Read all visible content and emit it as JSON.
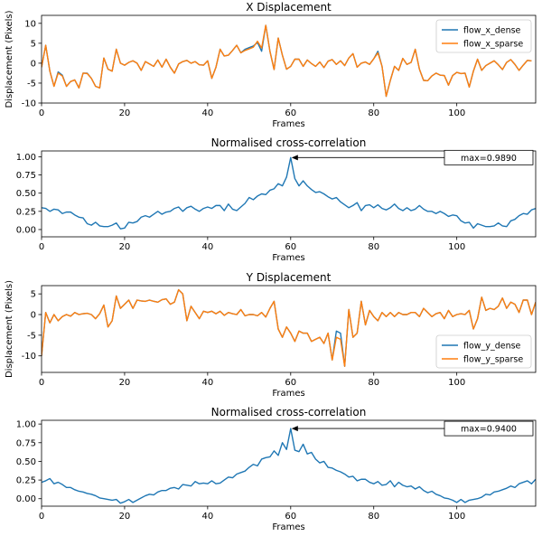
{
  "chart_data": [
    {
      "type": "line",
      "title": "X Displacement",
      "xlabel": "Frames",
      "ylabel": "Displacement (Pixels)",
      "xlim": [
        0,
        119
      ],
      "ylim": [
        -10,
        12
      ],
      "xticks": [
        0,
        20,
        40,
        60,
        80,
        100
      ],
      "yticks": [
        -10,
        -5,
        0,
        5,
        10
      ],
      "legend": "upper right",
      "series": [
        {
          "name": "flow_x_dense",
          "color": "#1f77b4",
          "values": [
            -1,
            4.5,
            -2,
            -5.8,
            -2.2,
            -3,
            -5.8,
            -4.6,
            -4.2,
            -6.2,
            -2.5,
            -2.5,
            -3.8,
            -5.8,
            -6.2,
            1.3,
            -1.5,
            -2.0,
            3.5,
            0.0,
            -0.5,
            0.2,
            0.6,
            0.0,
            -1.8,
            0.4,
            -0.2,
            -0.8,
            0.8,
            -1.0,
            1.0,
            -1.0,
            -2.5,
            -0.2,
            0.4,
            0.7,
            0.0,
            0.4,
            -0.4,
            -0.5,
            0.6,
            -3.8,
            -1.0,
            3.5,
            1.8,
            2.0,
            3.2,
            4.5,
            2.6,
            3.5,
            3.9,
            4.3,
            5.2,
            3.0,
            9.5,
            3.0,
            -1.6,
            6.3,
            2.0,
            -1.5,
            -0.8,
            1.0,
            1.0,
            -0.8,
            0.8,
            -0.1,
            -0.8,
            0.3,
            -1.1,
            0.5,
            0.9,
            -0.3,
            0.6,
            -0.6,
            1.3,
            2.4,
            -1.0,
            0.0,
            0.3,
            -0.3,
            1.1,
            3.0,
            -0.8,
            -8.3,
            -4.3,
            -0.8,
            -1.8,
            1.2,
            -0.3,
            0.2,
            3.5,
            -1.5,
            -4.3,
            -4.4,
            -3.2,
            -2.5,
            -3.0,
            -3.1,
            -5.5,
            -3.1,
            -2.3,
            -2.6,
            -2.5,
            -6.0,
            -2.0,
            1.0,
            -1.8,
            -0.6,
            0.0,
            0.6,
            -0.4,
            -1.6,
            0.2,
            0.9,
            -0.3,
            -1.8,
            -0.5,
            0.7,
            0.6
          ]
        },
        {
          "name": "flow_x_sparse",
          "color": "#ff7f0e",
          "values": [
            -1,
            4.5,
            -2,
            -5.8,
            -2.5,
            -3.2,
            -5.8,
            -4.6,
            -4.2,
            -6.2,
            -2.5,
            -2.6,
            -3.8,
            -5.8,
            -6.2,
            1.3,
            -1.5,
            -2.0,
            3.5,
            0.0,
            -0.5,
            0.2,
            0.6,
            0.0,
            -1.8,
            0.4,
            -0.2,
            -0.8,
            0.8,
            -1.0,
            1.0,
            -1.0,
            -2.5,
            -0.2,
            0.4,
            0.7,
            0.0,
            0.4,
            -0.4,
            -0.5,
            0.6,
            -3.8,
            -1.0,
            3.5,
            1.8,
            2.0,
            3.2,
            4.5,
            2.6,
            3.2,
            3.6,
            4.0,
            5.5,
            3.8,
            9.5,
            3.0,
            -1.6,
            6.3,
            2.0,
            -1.5,
            -0.8,
            1.0,
            1.0,
            -0.8,
            0.8,
            -0.1,
            -0.8,
            0.3,
            -1.1,
            0.5,
            0.9,
            -0.3,
            0.6,
            -0.6,
            1.3,
            2.4,
            -1.0,
            0.0,
            0.3,
            -0.3,
            1.1,
            2.6,
            -0.8,
            -8.3,
            -4.3,
            -0.8,
            -1.8,
            1.2,
            -0.3,
            0.2,
            3.5,
            -1.5,
            -4.3,
            -4.4,
            -3.2,
            -2.5,
            -3.0,
            -3.1,
            -5.5,
            -3.1,
            -2.3,
            -2.6,
            -2.5,
            -6.0,
            -2.0,
            1.0,
            -1.8,
            -0.6,
            0.0,
            0.6,
            -0.4,
            -1.6,
            0.2,
            0.9,
            -0.3,
            -1.8,
            -0.5,
            0.7,
            0.6
          ]
        }
      ]
    },
    {
      "type": "line",
      "title": "Normalised cross-correlation",
      "xlabel": "Frames",
      "ylabel": "",
      "xlim": [
        0,
        119
      ],
      "ylim": [
        -0.1,
        1.08
      ],
      "xticks": [
        0,
        20,
        40,
        60,
        80,
        100
      ],
      "yticks": [
        0.0,
        0.25,
        0.5,
        0.75,
        1.0
      ],
      "ytick_labels": [
        "0.00",
        "0.25",
        "0.50",
        "0.75",
        "1.00"
      ],
      "annotation": {
        "text": "max=0.9890",
        "x": 60,
        "y": 0.989
      },
      "series": [
        {
          "name": "ncc_x",
          "color": "#1f77b4",
          "values": [
            0.3,
            0.29,
            0.25,
            0.28,
            0.27,
            0.22,
            0.24,
            0.24,
            0.2,
            0.17,
            0.16,
            0.08,
            0.06,
            0.1,
            0.05,
            0.04,
            0.04,
            0.06,
            0.09,
            0.01,
            0.02,
            0.1,
            0.09,
            0.11,
            0.17,
            0.19,
            0.17,
            0.21,
            0.25,
            0.21,
            0.24,
            0.25,
            0.29,
            0.31,
            0.25,
            0.3,
            0.32,
            0.28,
            0.25,
            0.29,
            0.31,
            0.29,
            0.33,
            0.33,
            0.26,
            0.35,
            0.28,
            0.26,
            0.31,
            0.36,
            0.44,
            0.41,
            0.46,
            0.49,
            0.48,
            0.54,
            0.56,
            0.63,
            0.6,
            0.72,
            0.989,
            0.7,
            0.6,
            0.67,
            0.6,
            0.55,
            0.51,
            0.52,
            0.49,
            0.45,
            0.42,
            0.44,
            0.38,
            0.34,
            0.3,
            0.33,
            0.37,
            0.26,
            0.33,
            0.34,
            0.3,
            0.34,
            0.29,
            0.27,
            0.3,
            0.35,
            0.29,
            0.26,
            0.3,
            0.26,
            0.28,
            0.33,
            0.28,
            0.25,
            0.25,
            0.22,
            0.25,
            0.22,
            0.18,
            0.2,
            0.19,
            0.12,
            0.09,
            0.1,
            0.02,
            0.08,
            0.06,
            0.04,
            0.04,
            0.05,
            0.09,
            0.05,
            0.04,
            0.12,
            0.14,
            0.19,
            0.22,
            0.21,
            0.27,
            0.29
          ]
        }
      ]
    },
    {
      "type": "line",
      "title": "Y Displacement",
      "xlabel": "Frames",
      "ylabel": "Displacement (Pixels)",
      "xlim": [
        0,
        119
      ],
      "ylim": [
        -14,
        7
      ],
      "xticks": [
        0,
        20,
        40,
        60,
        80,
        100
      ],
      "yticks": [
        -10,
        -5,
        0,
        5
      ],
      "legend": "lower right",
      "series": [
        {
          "name": "flow_y_dense",
          "color": "#1f77b4",
          "values": [
            -10,
            0.5,
            -2,
            0,
            -1.5,
            -0.5,
            0,
            -0.4,
            0.5,
            0,
            0.2,
            0.3,
            0,
            -1,
            0.2,
            2.3,
            -3,
            -1.5,
            4.5,
            1.5,
            2.5,
            3.5,
            1.5,
            3.5,
            3.3,
            3.2,
            3.5,
            3.2,
            3.0,
            3.6,
            3.8,
            2.5,
            3.0,
            6.0,
            5.0,
            -1.5,
            2.0,
            0.5,
            -1.0,
            0.8,
            0.5,
            0.8,
            0.2,
            0.8,
            -0.2,
            0.5,
            0.2,
            0.0,
            1.2,
            -0.3,
            0.0,
            0.0,
            -0.3,
            0.5,
            -0.6,
            1.5,
            3.2,
            -3.5,
            -5.5,
            -3.0,
            -4.5,
            -6.5,
            -4.0,
            -4.5,
            -4.5,
            -6.5,
            -6.0,
            -5.5,
            -7.0,
            -4.5,
            -11,
            -4.0,
            -4.5,
            -12.5,
            1.2,
            -5.5,
            -4.5,
            3.2,
            -2.5,
            1.0,
            -0.5,
            -1.5,
            0.5,
            -0.5,
            0.5,
            -0.5,
            0.5,
            0.0,
            0.0,
            0.5,
            0.5,
            -0.5,
            1.5,
            0.5,
            -0.5,
            0.2,
            0.5,
            -1.0,
            1.0,
            -0.5,
            0.0,
            0.2,
            0.0,
            1.0,
            -3.5,
            -1.0,
            4.2,
            1.0,
            1.5,
            1.2,
            2.0,
            4.0,
            1.5,
            3.0,
            2.5,
            0.5,
            3.5,
            3.5,
            0.0,
            3.0
          ]
        },
        {
          "name": "flow_y_sparse",
          "color": "#ff7f0e",
          "values": [
            -10,
            0.5,
            -2,
            0,
            -1.5,
            -0.5,
            0,
            -0.4,
            0.5,
            0,
            0.2,
            0.3,
            0,
            -1,
            0.2,
            2.3,
            -3,
            -1.5,
            4.5,
            1.5,
            2.5,
            3.5,
            1.5,
            3.5,
            3.3,
            3.2,
            3.5,
            3.2,
            3.0,
            3.6,
            3.8,
            2.5,
            3.0,
            6.0,
            5.0,
            -1.5,
            2.0,
            0.5,
            -1.0,
            0.8,
            0.5,
            0.8,
            0.2,
            0.8,
            -0.2,
            0.5,
            0.2,
            0.0,
            1.2,
            -0.3,
            0.0,
            0.0,
            -0.3,
            0.5,
            -0.6,
            1.5,
            3.2,
            -3.5,
            -5.5,
            -3.0,
            -4.5,
            -6.5,
            -4.0,
            -4.5,
            -4.5,
            -6.5,
            -6.0,
            -5.5,
            -7.0,
            -4.5,
            -11,
            -5.5,
            -6.0,
            -12.5,
            1.2,
            -5.5,
            -4.5,
            3.2,
            -2.5,
            1.0,
            -0.5,
            -1.5,
            0.5,
            -0.5,
            0.5,
            -0.5,
            0.5,
            0.0,
            0.0,
            0.5,
            0.5,
            -0.5,
            1.5,
            0.5,
            -0.5,
            0.2,
            0.5,
            -1.0,
            1.0,
            -0.5,
            0.0,
            0.2,
            0.0,
            1.0,
            -3.5,
            -1.0,
            4.2,
            1.0,
            1.5,
            1.2,
            2.0,
            4.0,
            1.5,
            3.0,
            2.5,
            0.5,
            3.5,
            3.5,
            0.0,
            3.0
          ]
        }
      ]
    },
    {
      "type": "line",
      "title": "Normalised cross-correlation",
      "xlabel": "Frames",
      "ylabel": "",
      "xlim": [
        0,
        119
      ],
      "ylim": [
        -0.1,
        1.05
      ],
      "xticks": [
        0,
        20,
        40,
        60,
        80,
        100
      ],
      "yticks": [
        0.0,
        0.25,
        0.5,
        0.75,
        1.0
      ],
      "ytick_labels": [
        "0.00",
        "0.25",
        "0.50",
        "0.75",
        "1.00"
      ],
      "annotation": {
        "text": "max=0.9400",
        "x": 60,
        "y": 0.94
      },
      "series": [
        {
          "name": "ncc_y",
          "color": "#1f77b4",
          "values": [
            0.22,
            0.24,
            0.27,
            0.2,
            0.22,
            0.19,
            0.15,
            0.15,
            0.12,
            0.1,
            0.09,
            0.07,
            0.06,
            0.04,
            0.01,
            0.0,
            -0.01,
            -0.02,
            -0.01,
            -0.06,
            -0.04,
            -0.01,
            -0.05,
            -0.02,
            0.01,
            0.04,
            0.06,
            0.05,
            0.09,
            0.11,
            0.11,
            0.14,
            0.15,
            0.13,
            0.19,
            0.18,
            0.17,
            0.23,
            0.2,
            0.21,
            0.2,
            0.24,
            0.2,
            0.21,
            0.25,
            0.29,
            0.28,
            0.33,
            0.35,
            0.37,
            0.42,
            0.46,
            0.44,
            0.53,
            0.55,
            0.56,
            0.64,
            0.58,
            0.75,
            0.66,
            0.94,
            0.65,
            0.63,
            0.73,
            0.6,
            0.62,
            0.53,
            0.48,
            0.5,
            0.42,
            0.41,
            0.38,
            0.36,
            0.33,
            0.29,
            0.3,
            0.24,
            0.26,
            0.26,
            0.22,
            0.2,
            0.23,
            0.18,
            0.19,
            0.24,
            0.16,
            0.22,
            0.18,
            0.16,
            0.17,
            0.13,
            0.16,
            0.11,
            0.08,
            0.1,
            0.06,
            0.04,
            0.01,
            0.0,
            -0.02,
            -0.05,
            -0.01,
            -0.05,
            -0.02,
            -0.01,
            0.0,
            0.02,
            0.06,
            0.05,
            0.09,
            0.1,
            0.12,
            0.14,
            0.17,
            0.15,
            0.2,
            0.22,
            0.24,
            0.2,
            0.26
          ]
        }
      ]
    }
  ]
}
